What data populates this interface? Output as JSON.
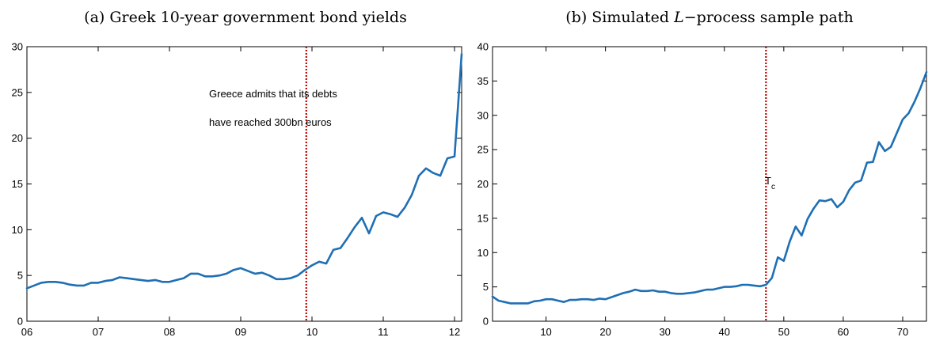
{
  "chart_data": [
    {
      "type": "line",
      "title": "(a) Greek 10-year government bond yields",
      "x_tick_labels": [
        "06",
        "07",
        "08",
        "09",
        "10",
        "11",
        "12"
      ],
      "x_tick_values": [
        6,
        7,
        8,
        9,
        10,
        11,
        12
      ],
      "y_tick_labels": [
        "0",
        "5",
        "10",
        "15",
        "20",
        "25",
        "30"
      ],
      "xlim": [
        6.0,
        12.1
      ],
      "ylim": [
        0,
        30
      ],
      "vline_x": 9.92,
      "annotation": [
        "Greece admits that its debts",
        "have reached 300bn euros"
      ],
      "series": [
        {
          "x": [
            6.0,
            6.1,
            6.2,
            6.3,
            6.4,
            6.5,
            6.6,
            6.7,
            6.8,
            6.9,
            7.0,
            7.1,
            7.2,
            7.3,
            7.4,
            7.5,
            7.6,
            7.7,
            7.8,
            7.9,
            8.0,
            8.1,
            8.2,
            8.3,
            8.4,
            8.5,
            8.6,
            8.7,
            8.8,
            8.9,
            9.0,
            9.1,
            9.2,
            9.3,
            9.4,
            9.5,
            9.6,
            9.7,
            9.8,
            9.9,
            10.0,
            10.1,
            10.2,
            10.3,
            10.4,
            10.5,
            10.6,
            10.7,
            10.8,
            10.9,
            11.0,
            11.1,
            11.2,
            11.3,
            11.4,
            11.5,
            11.6,
            11.7,
            11.8,
            11.9,
            12.0,
            12.1
          ],
          "values": [
            3.6,
            3.9,
            4.2,
            4.3,
            4.3,
            4.2,
            4.0,
            3.9,
            3.9,
            4.2,
            4.2,
            4.4,
            4.5,
            4.8,
            4.7,
            4.6,
            4.5,
            4.4,
            4.5,
            4.3,
            4.3,
            4.5,
            4.7,
            5.2,
            5.2,
            4.9,
            4.9,
            5.0,
            5.2,
            5.6,
            5.8,
            5.5,
            5.2,
            5.3,
            5.0,
            4.6,
            4.6,
            4.7,
            5.0,
            5.6,
            6.1,
            6.5,
            6.3,
            7.8,
            8.0,
            9.1,
            10.3,
            11.3,
            9.6,
            11.5,
            11.9,
            11.7,
            11.4,
            12.4,
            13.8,
            15.9,
            16.7,
            16.2,
            15.9,
            17.8,
            18.0,
            29.2
          ]
        }
      ]
    },
    {
      "type": "line",
      "title_prefix": "(b) Simulated ",
      "title_italic": "L",
      "title_suffix": "−process sample path",
      "x_tick_labels": [
        "10",
        "20",
        "30",
        "40",
        "50",
        "60",
        "70"
      ],
      "x_tick_values": [
        10,
        20,
        30,
        40,
        50,
        60,
        70
      ],
      "y_tick_labels": [
        "0",
        "5",
        "10",
        "15",
        "20",
        "25",
        "30",
        "35",
        "40"
      ],
      "xlim": [
        1,
        74
      ],
      "ylim": [
        0,
        40
      ],
      "vline_x": 47,
      "vline_label": "T",
      "vline_label_sub": "c",
      "series": [
        {
          "x": [
            1,
            2,
            3,
            4,
            5,
            6,
            7,
            8,
            9,
            10,
            11,
            12,
            13,
            14,
            15,
            16,
            17,
            18,
            19,
            20,
            21,
            22,
            23,
            24,
            25,
            26,
            27,
            28,
            29,
            30,
            31,
            32,
            33,
            34,
            35,
            36,
            37,
            38,
            39,
            40,
            41,
            42,
            43,
            44,
            45,
            46,
            47,
            48,
            49,
            50,
            51,
            52,
            53,
            54,
            55,
            56,
            57,
            58,
            59,
            60,
            61,
            62,
            63,
            64,
            65,
            66,
            67,
            68,
            69,
            70,
            71,
            72,
            73,
            74
          ],
          "values": [
            3.6,
            3.0,
            2.8,
            2.6,
            2.6,
            2.6,
            2.6,
            2.9,
            3.0,
            3.2,
            3.2,
            3.0,
            2.8,
            3.1,
            3.1,
            3.2,
            3.2,
            3.1,
            3.3,
            3.2,
            3.5,
            3.8,
            4.1,
            4.3,
            4.6,
            4.4,
            4.4,
            4.5,
            4.3,
            4.3,
            4.1,
            4.0,
            4.0,
            4.1,
            4.2,
            4.4,
            4.6,
            4.6,
            4.8,
            5.0,
            5.0,
            5.1,
            5.3,
            5.3,
            5.2,
            5.1,
            5.3,
            6.3,
            9.3,
            8.8,
            11.6,
            13.8,
            12.5,
            14.9,
            16.4,
            17.6,
            17.5,
            17.8,
            16.6,
            17.4,
            19.1,
            20.2,
            20.5,
            23.1,
            23.2,
            26.1,
            24.8,
            25.4,
            27.4,
            29.4,
            30.3,
            32.0,
            34.0,
            36.3
          ]
        }
      ]
    }
  ]
}
